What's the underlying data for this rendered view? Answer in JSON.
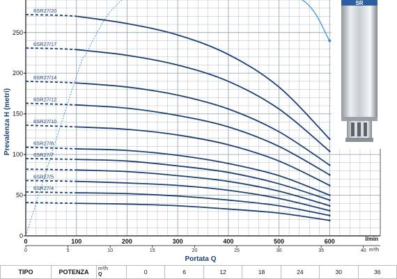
{
  "chart_data": {
    "type": "line",
    "ylabel": "Prevalenza H (metri)",
    "xlabel": "Portata Q",
    "x_unit_lmin": "l/min",
    "x_unit_m3h": "m³/h",
    "x_ticks_lmin": [
      0,
      100,
      200,
      300,
      400,
      500,
      600
    ],
    "x_ticks_m3h": [
      0,
      5,
      10,
      15,
      20,
      25,
      30,
      35,
      40
    ],
    "y_ticks": [
      0,
      50,
      100,
      150,
      200,
      250
    ],
    "xlim_lmin": [
      0,
      700
    ],
    "ylim": [
      0,
      290
    ],
    "grid": true,
    "series": [
      {
        "name": "6SR27/20",
        "values": [
          [
            0,
            272
          ],
          [
            100,
            270
          ],
          [
            200,
            261
          ],
          [
            300,
            247
          ],
          [
            400,
            223
          ],
          [
            500,
            183
          ],
          [
            600,
            119
          ]
        ]
      },
      {
        "name": "6SR27/17",
        "values": [
          [
            0,
            231
          ],
          [
            100,
            229
          ],
          [
            200,
            222
          ],
          [
            300,
            210
          ],
          [
            400,
            190
          ],
          [
            500,
            156
          ],
          [
            600,
            104
          ]
        ]
      },
      {
        "name": "6SR27/14",
        "values": [
          [
            0,
            190
          ],
          [
            100,
            188
          ],
          [
            200,
            183
          ],
          [
            300,
            173
          ],
          [
            400,
            156
          ],
          [
            500,
            128
          ],
          [
            600,
            87
          ]
        ]
      },
      {
        "name": "6SR27/12",
        "values": [
          [
            0,
            163
          ],
          [
            100,
            161
          ],
          [
            200,
            157
          ],
          [
            300,
            148
          ],
          [
            400,
            134
          ],
          [
            500,
            110
          ],
          [
            600,
            75
          ]
        ]
      },
      {
        "name": "6SR27/10",
        "values": [
          [
            0,
            136
          ],
          [
            100,
            134
          ],
          [
            200,
            131
          ],
          [
            300,
            124
          ],
          [
            400,
            112
          ],
          [
            500,
            92
          ],
          [
            600,
            62
          ]
        ]
      },
      {
        "name": "6SR27/8",
        "values": [
          [
            0,
            109
          ],
          [
            100,
            107
          ],
          [
            200,
            105
          ],
          [
            300,
            99
          ],
          [
            400,
            89
          ],
          [
            500,
            74
          ],
          [
            600,
            50
          ]
        ]
      },
      {
        "name": "6SR27/7",
        "values": [
          [
            0,
            95
          ],
          [
            100,
            94
          ],
          [
            200,
            92
          ],
          [
            300,
            86
          ],
          [
            400,
            78
          ],
          [
            500,
            64
          ],
          [
            600,
            44
          ]
        ]
      },
      {
        "name": "",
        "values": [
          [
            0,
            82
          ],
          [
            100,
            81
          ],
          [
            200,
            79
          ],
          [
            300,
            74
          ],
          [
            400,
            67
          ],
          [
            500,
            55
          ],
          [
            600,
            37
          ]
        ]
      },
      {
        "name": "6SR27/5",
        "values": [
          [
            0,
            68
          ],
          [
            100,
            67
          ],
          [
            200,
            65
          ],
          [
            300,
            62
          ],
          [
            400,
            56
          ],
          [
            500,
            46
          ],
          [
            600,
            31
          ]
        ]
      },
      {
        "name": "6SR27/4",
        "values": [
          [
            0,
            54
          ],
          [
            100,
            53
          ],
          [
            200,
            52
          ],
          [
            300,
            49
          ],
          [
            400,
            44
          ],
          [
            500,
            37
          ],
          [
            600,
            25
          ]
        ]
      },
      {
        "name": "",
        "values": [
          [
            0,
            41
          ],
          [
            100,
            40
          ],
          [
            200,
            39
          ],
          [
            300,
            37
          ],
          [
            400,
            33
          ],
          [
            500,
            28
          ],
          [
            600,
            19
          ]
        ]
      }
    ],
    "envelope_line": [
      [
        0,
        0
      ],
      [
        100,
        196
      ],
      [
        120,
        225
      ],
      [
        160,
        270
      ],
      [
        200,
        296
      ]
    ],
    "efficiency_curve": [
      [
        400,
        293
      ],
      [
        540,
        292
      ],
      [
        600,
        240
      ]
    ],
    "colors": {
      "curve": "#1b3f73",
      "grid": "#9aa7b4",
      "envelope": "#2f8fd0"
    }
  },
  "table": {
    "col_tipo": "TIPO",
    "col_potenza": "POTENZA",
    "q_label": "Q",
    "unit_m3h": "m³/h",
    "q_values_m3h": [
      "0",
      "6",
      "12",
      "18",
      "24",
      "30",
      "36"
    ]
  },
  "pump_brand": "SR"
}
